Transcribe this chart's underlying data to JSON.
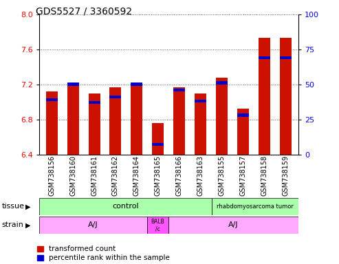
{
  "title": "GDS5527 / 3360592",
  "samples": [
    "GSM738156",
    "GSM738160",
    "GSM738161",
    "GSM738162",
    "GSM738164",
    "GSM738165",
    "GSM738166",
    "GSM738163",
    "GSM738155",
    "GSM738157",
    "GSM738158",
    "GSM738159"
  ],
  "red_values": [
    7.12,
    7.22,
    7.1,
    7.17,
    7.18,
    6.76,
    7.17,
    7.1,
    7.28,
    6.92,
    7.73,
    7.73
  ],
  "blue_pct": [
    38,
    49,
    36,
    40,
    49,
    6,
    45,
    37,
    50,
    27,
    68,
    68
  ],
  "ymin": 6.4,
  "ymax": 8.0,
  "yticks": [
    6.4,
    6.8,
    7.2,
    7.6,
    8.0
  ],
  "right_yticks": [
    0,
    25,
    50,
    75,
    100
  ],
  "bar_color": "#CC1100",
  "blue_color": "#0000CC",
  "bg_color": "#FFFFFF",
  "grid_color": "#555555",
  "title_fontsize": 10,
  "tick_fontsize": 7,
  "label_fontsize": 8,
  "legend_fontsize": 7.5,
  "bar_width": 0.55,
  "control_color": "#AAFFAA",
  "tumor_color": "#AAFFAA",
  "strain_aj_color": "#FFAAFF",
  "strain_balb_color": "#FF55FF"
}
